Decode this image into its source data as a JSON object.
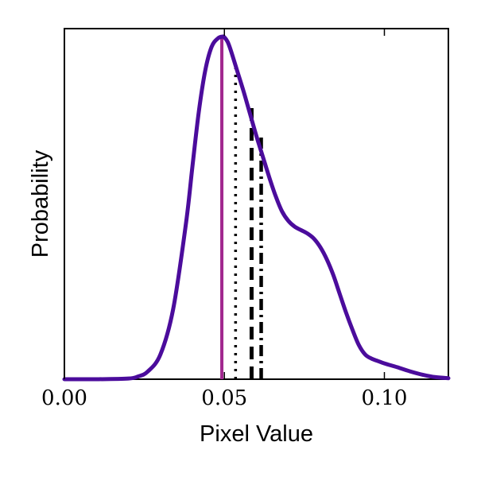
{
  "chart_data": {
    "type": "line",
    "title": "",
    "xlabel": "Pixel Value",
    "ylabel": "Probability",
    "xlim": [
      0.0,
      0.12
    ],
    "ylim": [
      0.0,
      1.0
    ],
    "x_ticks": [
      0.0,
      0.05,
      0.1
    ],
    "x_tick_labels": [
      "0.00",
      "0.05",
      "0.10"
    ],
    "y_ticks": [],
    "grid": false,
    "legend": "none",
    "series": [
      {
        "x": [
          0.0,
          0.01,
          0.02,
          0.023,
          0.026,
          0.03,
          0.034,
          0.038,
          0.04,
          0.042,
          0.044,
          0.046,
          0.048,
          0.0495,
          0.05,
          0.051,
          0.052,
          0.054,
          0.056,
          0.058,
          0.06,
          0.062,
          0.064,
          0.066,
          0.068,
          0.07,
          0.072,
          0.074,
          0.076,
          0.078,
          0.08,
          0.082,
          0.084,
          0.086,
          0.088,
          0.09,
          0.092,
          0.094,
          0.096,
          0.098,
          0.1,
          0.104,
          0.108,
          0.112,
          0.116,
          0.12
        ],
        "y": [
          0.0,
          0.0,
          0.002,
          0.008,
          0.022,
          0.072,
          0.205,
          0.455,
          0.62,
          0.78,
          0.9,
          0.97,
          0.995,
          1.0,
          0.998,
          0.985,
          0.96,
          0.9,
          0.84,
          0.775,
          0.71,
          0.65,
          0.59,
          0.535,
          0.49,
          0.462,
          0.445,
          0.435,
          0.425,
          0.41,
          0.385,
          0.35,
          0.305,
          0.25,
          0.195,
          0.145,
          0.1,
          0.072,
          0.06,
          0.053,
          0.046,
          0.035,
          0.023,
          0.013,
          0.006,
          0.003
        ],
        "color": "#4b0c9c"
      }
    ],
    "reference_lines": [
      {
        "x": 0.0492,
        "y_top": 1.0,
        "style": "solid",
        "color": "#a1288f"
      },
      {
        "x": 0.0535,
        "y_top": 0.915,
        "style": "dotted",
        "color": "#000000"
      },
      {
        "x": 0.0585,
        "y_top": 0.795,
        "style": "dashed",
        "color": "#000000"
      },
      {
        "x": 0.0615,
        "y_top": 0.715,
        "style": "dashdot",
        "color": "#000000"
      }
    ]
  }
}
